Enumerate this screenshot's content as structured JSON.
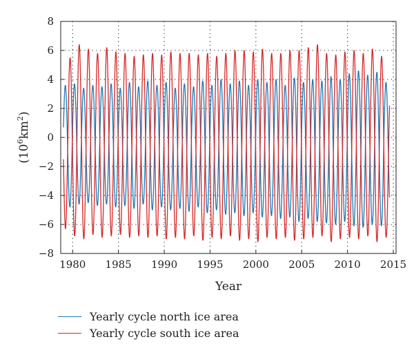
{
  "chart_data": {
    "type": "line",
    "title": "",
    "xlabel": "Year",
    "ylabel": "(10⁶km²)",
    "ylabel_parts": {
      "open": "(10",
      "exp1": "6",
      "mid": "km",
      "exp2": "2",
      "close": ")"
    },
    "xlim": [
      1978.7,
      2015.3
    ],
    "ylim": [
      -8,
      8
    ],
    "x_ticks": [
      1980,
      1985,
      1990,
      1995,
      2000,
      2005,
      2010,
      2015
    ],
    "y_ticks": [
      -8,
      -6,
      -4,
      -2,
      0,
      2,
      4,
      6,
      8
    ],
    "grid": "dotted",
    "legend_position": "below",
    "series": [
      {
        "name": "Yearly cycle north ice area",
        "color": "#1f77b4",
        "x_start": 1979.0,
        "x_end": 2014.6,
        "period_years": 1.0,
        "peak_month_offset": 0.2,
        "annual_max": [
          3.6,
          3.7,
          3.4,
          3.6,
          3.5,
          3.7,
          3.4,
          3.8,
          3.5,
          3.9,
          3.6,
          3.8,
          3.4,
          3.7,
          3.5,
          3.9,
          3.6,
          4.0,
          3.7,
          3.9,
          3.6,
          4.0,
          3.8,
          4.0,
          3.6,
          4.1,
          3.8,
          4.0,
          3.9,
          4.2,
          4.0,
          4.4,
          4.6,
          4.3,
          4.5,
          3.8
        ],
        "annual_min": [
          -4.8,
          -4.6,
          -4.5,
          -4.7,
          -4.6,
          -4.8,
          -4.7,
          -4.9,
          -4.6,
          -5.0,
          -4.8,
          -5.0,
          -4.9,
          -5.1,
          -4.8,
          -5.2,
          -5.0,
          -5.3,
          -5.2,
          -5.4,
          -5.2,
          -5.5,
          -5.4,
          -5.6,
          -5.5,
          -5.8,
          -5.6,
          -5.8,
          -5.9,
          -6.0,
          -5.8,
          -6.1,
          -6.2,
          -6.0,
          -6.1,
          -5.3
        ]
      },
      {
        "name": "Yearly cycle south ice area",
        "color": "#d62728",
        "x_start": 1979.0,
        "x_end": 2014.6,
        "period_years": 1.0,
        "peak_month_offset": 0.72,
        "annual_max": [
          5.5,
          6.4,
          6.1,
          5.8,
          6.2,
          5.9,
          5.8,
          5.6,
          5.7,
          5.8,
          5.7,
          5.9,
          5.8,
          5.8,
          5.7,
          5.8,
          5.6,
          5.8,
          6.0,
          6.0,
          5.9,
          6.1,
          5.8,
          5.8,
          6.0,
          6.0,
          6.2,
          6.4,
          5.8,
          5.7,
          5.9,
          6.0,
          5.8,
          6.1,
          5.6,
          4.1
        ],
        "annual_min": [
          -6.3,
          -6.8,
          -7.0,
          -6.7,
          -6.9,
          -6.8,
          -6.7,
          -6.9,
          -6.8,
          -6.9,
          -6.8,
          -7.0,
          -6.9,
          -7.0,
          -6.8,
          -7.1,
          -6.9,
          -7.0,
          -6.8,
          -7.1,
          -7.0,
          -7.2,
          -6.9,
          -7.0,
          -6.9,
          -7.1,
          -7.0,
          -6.9,
          -6.8,
          -7.2,
          -7.0,
          -6.9,
          -7.0,
          -6.8,
          -7.2,
          -6.9
        ]
      }
    ]
  }
}
